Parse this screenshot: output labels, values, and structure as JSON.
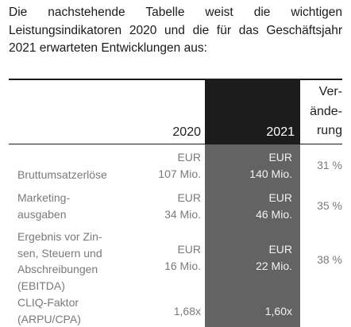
{
  "intro": {
    "text": "Die nachstehende Tabelle weist die wichtigen Leistungsindikatoren 2020 und die für das Geschäftsjahr 2021 erwarteten Entwicklungen aus:"
  },
  "table": {
    "headers": {
      "col_2020": "2020",
      "col_2021": "2021",
      "col_change_l1": "Ver-",
      "col_change_l2": "ände-",
      "col_change_l3": "rung"
    },
    "rows": [
      {
        "label_l1": "Bruttumsatzerlöse",
        "y2020_l1": "EUR",
        "y2020_l2": "107 Mio.",
        "y2021_l1": "EUR",
        "y2021_l2": "140 Mio.",
        "change": "31 %"
      },
      {
        "label_l1": "Marketing-",
        "label_l2": "ausgaben",
        "y2020_l1": "EUR",
        "y2020_l2": "34 Mio.",
        "y2021_l1": "EUR",
        "y2021_l2": "46 Mio.",
        "change": "35 %"
      },
      {
        "label_l1": "Ergebnis vor Zin-",
        "label_l2": "sen, Steuern und",
        "label_l3": "Abschreibungen",
        "label_l4": "(EBITDA)",
        "y2020_l1": "EUR",
        "y2020_l2": "16 Mio.",
        "y2021_l1": "EUR",
        "y2021_l2": "22 Mio.",
        "change": "38 %"
      },
      {
        "label_l1": "CLIQ-Faktor",
        "label_l2": "(ARPU/CPA)",
        "y2020_l1": "1,68x",
        "y2021_l1": "1,60x"
      }
    ]
  }
}
